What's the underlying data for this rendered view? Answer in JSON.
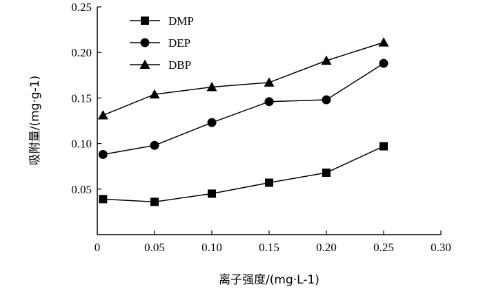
{
  "chart_data": {
    "type": "line",
    "xlabel": "离子强度/(mg·L-1)",
    "ylabel": "吸附量/(mg·g-1)",
    "xlim": [
      0,
      0.3
    ],
    "ylim": [
      0,
      0.25
    ],
    "x_ticks": [
      0,
      0.05,
      0.1,
      0.15,
      0.2,
      0.25,
      0.3
    ],
    "x_tick_labels": [
      "0",
      "0.05",
      "0.10",
      "0.15",
      "0.20",
      "0.25",
      "0.30"
    ],
    "y_ticks": [
      0.05,
      0.1,
      0.15,
      0.2,
      0.25
    ],
    "y_tick_labels": [
      "0.05",
      "0.10",
      "0.15",
      "0.20",
      "0.25"
    ],
    "grid": false,
    "legend_position": "top-left",
    "series": [
      {
        "name": "DMP",
        "marker": "square",
        "x": [
          0.005,
          0.05,
          0.1,
          0.15,
          0.2,
          0.25
        ],
        "values": [
          0.039,
          0.036,
          0.045,
          0.057,
          0.068,
          0.097
        ]
      },
      {
        "name": "DEP",
        "marker": "circle",
        "x": [
          0.005,
          0.05,
          0.1,
          0.15,
          0.2,
          0.25
        ],
        "values": [
          0.088,
          0.098,
          0.123,
          0.146,
          0.148,
          0.188
        ]
      },
      {
        "name": "DBP",
        "marker": "triangle",
        "x": [
          0.005,
          0.05,
          0.1,
          0.15,
          0.2,
          0.25
        ],
        "values": [
          0.131,
          0.154,
          0.162,
          0.167,
          0.191,
          0.211
        ]
      }
    ]
  }
}
